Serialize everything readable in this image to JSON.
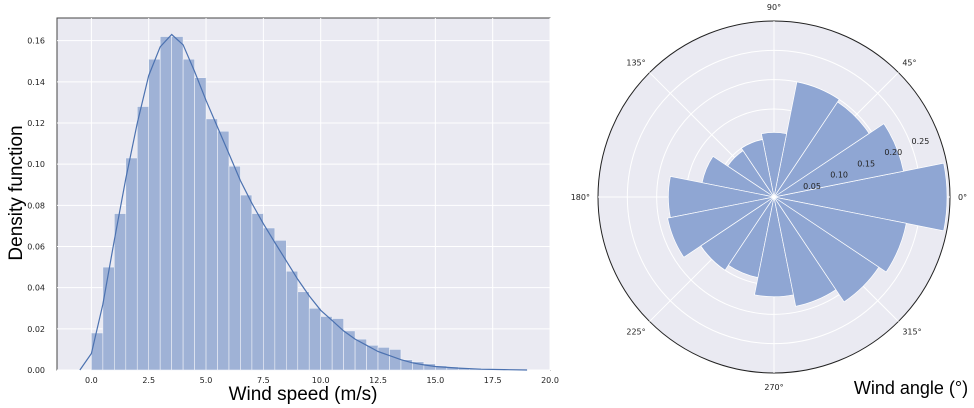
{
  "chart_data": [
    {
      "type": "bar",
      "xlabel": "Wind speed (m/s)",
      "ylabel": "Density function",
      "xlim": [
        -1.5,
        20.0
      ],
      "ylim": [
        0.0,
        0.171
      ],
      "xticks": [
        0.0,
        2.5,
        5.0,
        7.5,
        10.0,
        12.5,
        15.0,
        17.5,
        20.0
      ],
      "yticks": [
        0.0,
        0.02,
        0.04,
        0.06,
        0.08,
        0.1,
        0.12,
        0.14,
        0.16
      ],
      "xtick_labels": [
        "0.0",
        "2.5",
        "5.0",
        "7.5",
        "10.0",
        "12.5",
        "15.0",
        "17.5",
        "20.0"
      ],
      "ytick_labels": [
        "0.00",
        "0.02",
        "0.04",
        "0.06",
        "0.08",
        "0.10",
        "0.12",
        "0.14",
        "0.16"
      ],
      "grid": true,
      "bar_color": "#9fb2d6",
      "line_color": "#4c72b0",
      "background": "#eaeaf2",
      "bins": [
        [
          0.0,
          0.5,
          0.018
        ],
        [
          0.5,
          1.0,
          0.05
        ],
        [
          1.0,
          1.5,
          0.076
        ],
        [
          1.5,
          2.0,
          0.103
        ],
        [
          2.0,
          2.5,
          0.128
        ],
        [
          2.5,
          3.0,
          0.151
        ],
        [
          3.0,
          3.5,
          0.162
        ],
        [
          3.5,
          4.0,
          0.162
        ],
        [
          4.0,
          4.5,
          0.151
        ],
        [
          4.5,
          5.0,
          0.142
        ],
        [
          5.0,
          5.5,
          0.122
        ],
        [
          5.5,
          6.0,
          0.116
        ],
        [
          6.0,
          6.5,
          0.099
        ],
        [
          6.5,
          7.0,
          0.085
        ],
        [
          7.0,
          7.5,
          0.076
        ],
        [
          7.5,
          8.0,
          0.069
        ],
        [
          8.0,
          8.5,
          0.063
        ],
        [
          8.5,
          9.0,
          0.048
        ],
        [
          9.0,
          9.5,
          0.038
        ],
        [
          9.5,
          10.0,
          0.03
        ],
        [
          10.0,
          10.5,
          0.026
        ],
        [
          10.5,
          11.0,
          0.025
        ],
        [
          11.0,
          11.5,
          0.019
        ],
        [
          11.5,
          12.0,
          0.015
        ],
        [
          12.0,
          12.5,
          0.012
        ],
        [
          12.5,
          13.0,
          0.011
        ],
        [
          13.0,
          13.5,
          0.01
        ],
        [
          13.5,
          14.0,
          0.005
        ],
        [
          14.0,
          14.5,
          0.004
        ],
        [
          14.5,
          15.0,
          0.003
        ],
        [
          15.0,
          15.5,
          0.002
        ],
        [
          15.5,
          16.0,
          0.0015
        ],
        [
          16.0,
          16.5,
          0.001
        ],
        [
          16.5,
          17.0,
          0.0008
        ],
        [
          17.0,
          17.5,
          0.0006
        ],
        [
          17.5,
          18.0,
          0.0004
        ],
        [
          18.0,
          18.5,
          0.0002
        ]
      ],
      "kde": [
        [
          -0.5,
          0.0
        ],
        [
          0.0,
          0.008
        ],
        [
          0.5,
          0.032
        ],
        [
          1.0,
          0.063
        ],
        [
          1.5,
          0.093
        ],
        [
          2.0,
          0.12
        ],
        [
          2.5,
          0.143
        ],
        [
          3.0,
          0.157
        ],
        [
          3.5,
          0.163
        ],
        [
          4.0,
          0.158
        ],
        [
          4.5,
          0.145
        ],
        [
          5.0,
          0.131
        ],
        [
          5.5,
          0.118
        ],
        [
          6.0,
          0.105
        ],
        [
          6.5,
          0.092
        ],
        [
          7.0,
          0.081
        ],
        [
          7.5,
          0.071
        ],
        [
          8.0,
          0.062
        ],
        [
          8.5,
          0.053
        ],
        [
          9.0,
          0.044
        ],
        [
          9.5,
          0.036
        ],
        [
          10.0,
          0.029
        ],
        [
          10.5,
          0.024
        ],
        [
          11.0,
          0.019
        ],
        [
          11.5,
          0.015
        ],
        [
          12.0,
          0.012
        ],
        [
          12.5,
          0.009
        ],
        [
          13.0,
          0.007
        ],
        [
          13.5,
          0.005
        ],
        [
          14.0,
          0.0035
        ],
        [
          14.5,
          0.0025
        ],
        [
          15.0,
          0.0017
        ],
        [
          16.0,
          0.0009
        ],
        [
          17.0,
          0.0004
        ],
        [
          18.0,
          0.0002
        ],
        [
          19.0,
          0.0
        ]
      ]
    },
    {
      "type": "polar-bar",
      "xlabel": "Wind angle (°)",
      "angle_labels": [
        "0°",
        "45°",
        "90°",
        "135°",
        "180°",
        "225°",
        "270°",
        "315°"
      ],
      "radial_ticks": [
        0.05,
        0.1,
        0.15,
        0.2,
        0.25
      ],
      "radial_tick_labels": [
        "0.05",
        "0.10",
        "0.15",
        "0.20",
        "0.25"
      ],
      "rmax": 0.3,
      "grid": true,
      "bar_color": "#8fa6d3",
      "background": "#eaeaf2",
      "bin_width_deg": 22.5,
      "directions_deg": [
        0,
        22.5,
        45,
        67.5,
        90,
        112.5,
        135,
        157.5,
        180,
        202.5,
        225,
        247.5,
        270,
        292.5,
        315,
        337.5
      ],
      "values": [
        0.295,
        0.225,
        0.195,
        0.2,
        0.11,
        0.1,
        0.095,
        0.125,
        0.18,
        0.185,
        0.15,
        0.14,
        0.17,
        0.19,
        0.215,
        0.23
      ]
    }
  ]
}
